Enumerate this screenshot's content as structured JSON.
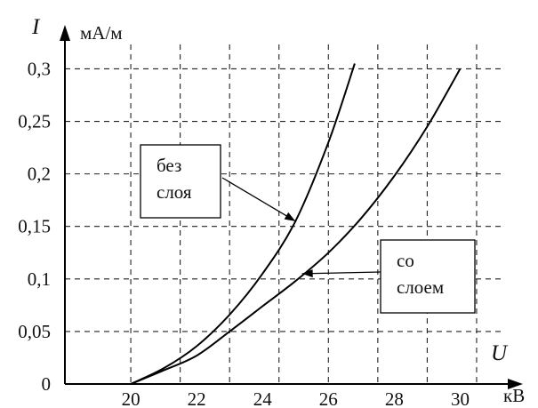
{
  "chart_data": {
    "type": "line",
    "title": "",
    "xlabel": "U",
    "xunit": "кВ",
    "ylabel": "I",
    "yunit": "мА/м",
    "xlim": [
      18,
      31.5
    ],
    "ylim": [
      0,
      0.33
    ],
    "x_ticks": [
      {
        "value": 20,
        "label": "20"
      },
      {
        "value": 22,
        "label": "22"
      },
      {
        "value": 24,
        "label": "24"
      },
      {
        "value": 26,
        "label": "26"
      },
      {
        "value": 28,
        "label": "28"
      },
      {
        "value": 30,
        "label": "30"
      }
    ],
    "y_ticks": [
      {
        "value": 0,
        "label": "0"
      },
      {
        "value": 0.05,
        "label": "0,05"
      },
      {
        "value": 0.1,
        "label": "0,1"
      },
      {
        "value": 0.15,
        "label": "0,15"
      },
      {
        "value": 0.2,
        "label": "0,2"
      },
      {
        "value": 0.25,
        "label": "0,25"
      },
      {
        "value": 0.3,
        "label": "0,3"
      }
    ],
    "x_grid": [
      20,
      21.5,
      23,
      24.5,
      26,
      27.5,
      29,
      30.5
    ],
    "y_grid": [
      0.05,
      0.1,
      0.15,
      0.2,
      0.25,
      0.3
    ],
    "grid": true,
    "series": [
      {
        "id": "no-layer",
        "x": [
          20,
          21,
          22,
          23,
          24,
          25,
          26,
          26.8
        ],
        "y": [
          0,
          0.015,
          0.036,
          0.066,
          0.105,
          0.155,
          0.23,
          0.305
        ]
      },
      {
        "id": "with-layer",
        "x": [
          20,
          21,
          22,
          23,
          24,
          25,
          26,
          27,
          28,
          29,
          30
        ],
        "y": [
          0,
          0.013,
          0.027,
          0.05,
          0.074,
          0.098,
          0.125,
          0.158,
          0.198,
          0.245,
          0.3
        ]
      }
    ],
    "annotations": [
      {
        "series": "no-layer",
        "lines": [
          "без",
          "слоя"
        ],
        "point": [
          25,
          0.155
        ]
      },
      {
        "series": "with-layer",
        "lines": [
          "со",
          "слоем"
        ],
        "point": [
          25.2,
          0.105
        ]
      }
    ]
  }
}
